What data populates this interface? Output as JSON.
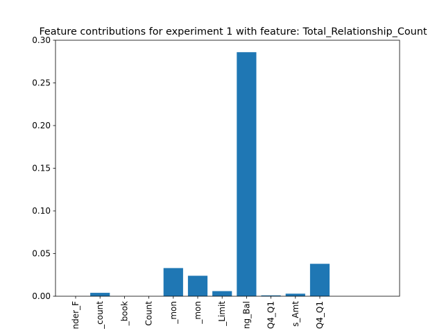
{
  "chart_data": {
    "type": "bar",
    "title": "Feature contributions for experiment 1 with feature: Total_Relationship_Count",
    "xlabel": "",
    "ylabel": "",
    "categories": [
      "nder_F",
      "_count",
      "_book",
      "Count",
      "_mon",
      "_mon",
      "_Limit",
      "ng_Bal",
      "Q4_Q1",
      "s_Amt",
      "Q4_Q1"
    ],
    "values": [
      0.0,
      0.004,
      0.0,
      0.0,
      0.033,
      0.024,
      0.006,
      0.286,
      0.001,
      0.003,
      0.038
    ],
    "ylim": [
      0,
      0.3
    ],
    "yticks": [
      0.0,
      0.05,
      0.1,
      0.15,
      0.2,
      0.25,
      0.3
    ],
    "ytick_labels": [
      "0.00",
      "0.05",
      "0.10",
      "0.15",
      "0.20",
      "0.25",
      "0.30"
    ],
    "grid": false,
    "legend": "none",
    "bar_color": "#1f77b4"
  }
}
